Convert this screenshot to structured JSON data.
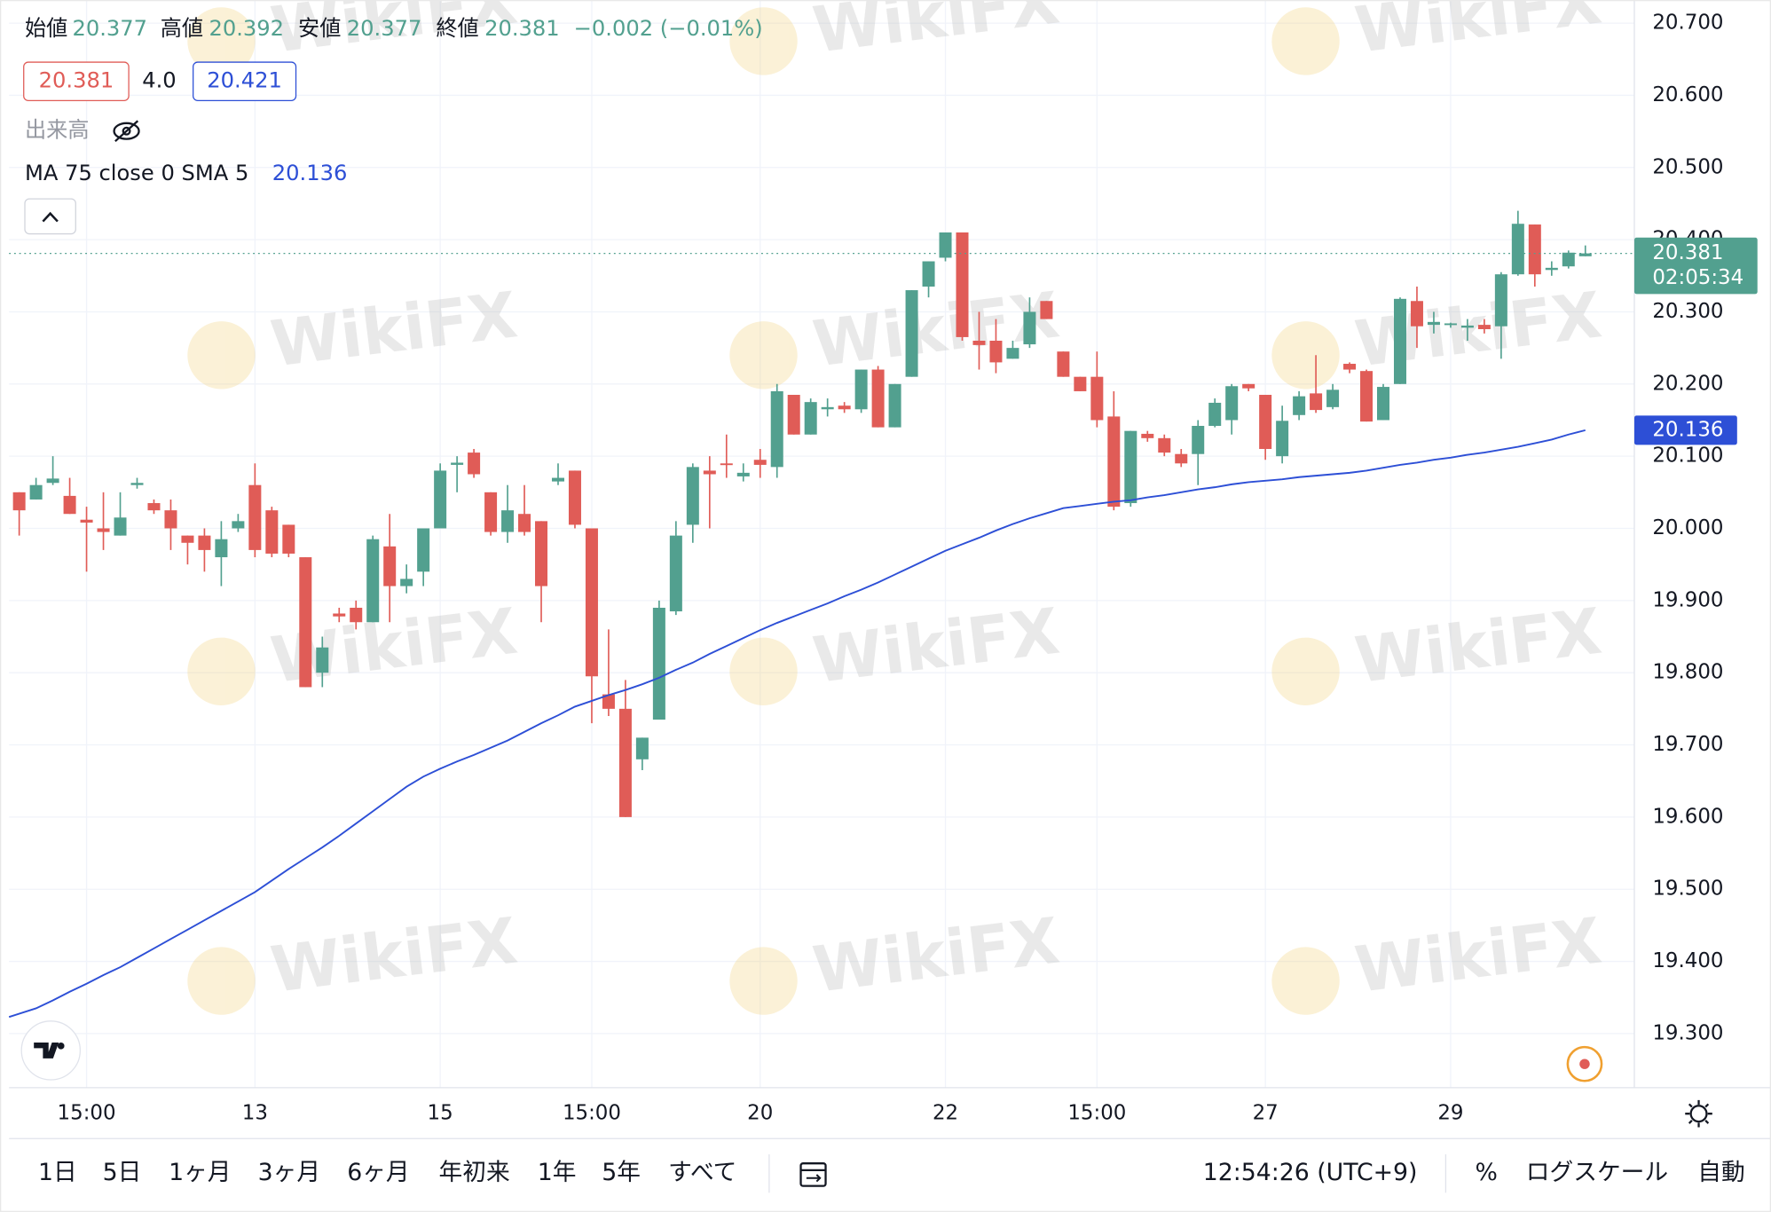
{
  "chart_data": {
    "type": "candlestick",
    "categories": [
      null,
      null,
      null,
      null,
      "15:00",
      null,
      null,
      null,
      null,
      null,
      null,
      null,
      null,
      null,
      "13",
      null,
      null,
      null,
      null,
      null,
      null,
      null,
      null,
      null,
      null,
      "15",
      null,
      null,
      null,
      null,
      null,
      null,
      null,
      null,
      "15:00",
      null,
      null,
      null,
      null,
      null,
      null,
      null,
      null,
      null,
      "20",
      null,
      null,
      null,
      null,
      null,
      null,
      null,
      null,
      null,
      null,
      "22",
      null,
      null,
      null,
      null,
      null,
      null,
      null,
      null,
      "15:00",
      null,
      null,
      null,
      null,
      null,
      null,
      null,
      null,
      null,
      "27",
      null,
      null,
      null,
      null,
      null,
      null,
      null,
      null,
      null,
      null,
      "29",
      null,
      null,
      null,
      null,
      null,
      null,
      null,
      null
    ],
    "open": [
      20.05,
      20.04,
      20.063,
      20.045,
      20.012,
      20.0,
      19.99,
      20.06,
      20.035,
      20.025,
      19.99,
      19.99,
      19.96,
      20.0,
      20.06,
      20.025,
      20.005,
      19.96,
      19.8,
      19.882,
      19.89,
      19.87,
      19.975,
      19.92,
      19.94,
      20.0,
      20.088,
      20.105,
      20.05,
      19.995,
      20.02,
      20.01,
      20.065,
      20.08,
      20.0,
      19.77,
      19.75,
      19.68,
      19.735,
      19.885,
      20.005,
      20.08,
      20.09,
      20.072,
      20.095,
      20.085,
      20.185,
      20.13,
      20.165,
      20.17,
      20.165,
      20.22,
      20.14,
      20.21,
      20.335,
      20.375,
      20.41,
      20.26,
      20.26,
      20.235,
      20.255,
      20.315,
      20.245,
      20.21,
      20.21,
      20.155,
      20.035,
      20.131,
      20.125,
      20.103,
      20.103,
      20.142,
      20.15,
      20.2,
      20.185,
      20.1,
      20.157,
      20.187,
      20.168,
      20.228,
      20.218,
      20.15,
      20.2,
      20.315,
      20.282,
      20.282,
      20.278,
      20.282,
      20.28,
      20.352,
      20.421,
      20.358,
      20.363,
      20.377
    ],
    "high": [
      20.05,
      20.07,
      20.1,
      20.07,
      20.03,
      20.05,
      20.05,
      20.07,
      20.04,
      20.04,
      19.99,
      20.0,
      20.01,
      20.02,
      20.09,
      20.03,
      20.005,
      19.96,
      19.85,
      19.89,
      19.9,
      19.99,
      20.02,
      19.95,
      20.0,
      20.09,
      20.1,
      20.11,
      20.05,
      20.06,
      20.06,
      20.01,
      20.09,
      20.08,
      20.0,
      19.86,
      19.79,
      19.71,
      19.9,
      20.01,
      20.09,
      20.1,
      20.13,
      20.09,
      20.11,
      20.2,
      20.185,
      20.18,
      20.18,
      20.175,
      20.22,
      20.225,
      20.2,
      20.33,
      20.37,
      20.41,
      20.41,
      20.3,
      20.29,
      20.26,
      20.32,
      20.315,
      20.245,
      20.21,
      20.245,
      20.19,
      20.135,
      20.135,
      20.13,
      20.11,
      20.15,
      20.18,
      20.2,
      20.2,
      20.185,
      20.17,
      20.19,
      20.24,
      20.2,
      20.23,
      20.22,
      20.2,
      20.32,
      20.335,
      20.3,
      20.285,
      20.29,
      20.29,
      20.355,
      20.44,
      20.421,
      20.37,
      20.385,
      20.392
    ],
    "low": [
      19.99,
      20.04,
      20.06,
      20.02,
      19.94,
      19.97,
      19.99,
      20.055,
      20.02,
      19.97,
      19.95,
      19.94,
      19.92,
      19.995,
      19.96,
      19.96,
      19.96,
      19.78,
      19.78,
      19.87,
      19.86,
      19.87,
      19.87,
      19.91,
      19.92,
      20.0,
      20.05,
      20.07,
      19.99,
      19.98,
      19.99,
      19.87,
      20.06,
      20.0,
      19.73,
      19.74,
      19.6,
      19.665,
      19.735,
      19.88,
      19.98,
      20.0,
      20.07,
      20.065,
      20.07,
      20.07,
      20.13,
      20.13,
      20.155,
      20.16,
      20.16,
      20.14,
      20.14,
      20.21,
      20.32,
      20.37,
      20.26,
      20.22,
      20.215,
      20.235,
      20.25,
      20.29,
      20.21,
      20.19,
      20.14,
      20.025,
      20.03,
      20.12,
      20.1,
      20.085,
      20.06,
      20.14,
      20.13,
      20.19,
      20.095,
      20.09,
      20.15,
      20.16,
      20.165,
      20.215,
      20.148,
      20.15,
      20.2,
      20.25,
      20.27,
      20.278,
      20.26,
      20.27,
      20.235,
      20.35,
      20.335,
      20.35,
      20.36,
      20.377
    ],
    "close": [
      20.025,
      20.06,
      20.069,
      20.02,
      20.008,
      19.995,
      20.015,
      20.063,
      20.025,
      20.0,
      19.98,
      19.97,
      19.985,
      20.01,
      19.97,
      19.965,
      19.965,
      19.78,
      19.835,
      19.878,
      19.87,
      19.985,
      19.92,
      19.93,
      20.0,
      20.08,
      20.091,
      20.075,
      19.995,
      20.025,
      19.995,
      19.92,
      20.07,
      20.005,
      19.795,
      19.75,
      19.6,
      19.71,
      19.89,
      19.99,
      20.085,
      20.075,
      20.088,
      20.077,
      20.088,
      20.19,
      20.13,
      20.175,
      20.168,
      20.165,
      20.22,
      20.14,
      20.2,
      20.33,
      20.37,
      20.41,
      20.265,
      20.254,
      20.23,
      20.25,
      20.3,
      20.29,
      20.21,
      20.19,
      20.15,
      20.03,
      20.135,
      20.125,
      20.105,
      20.09,
      20.142,
      20.174,
      20.197,
      20.194,
      20.11,
      20.149,
      20.183,
      20.164,
      20.192,
      20.22,
      20.148,
      20.196,
      20.318,
      20.28,
      20.286,
      20.284,
      20.281,
      20.276,
      20.352,
      20.422,
      20.352,
      20.361,
      20.382,
      20.381
    ],
    "up_color": "#52a08f",
    "down_color": "#e05c57",
    "ma": {
      "name": "MA 75 close 0 SMA 5",
      "color": "#2d4fd6",
      "values": [
        19.323,
        19.335,
        19.346,
        19.358,
        19.369,
        19.381,
        19.392,
        19.405,
        19.418,
        19.431,
        19.444,
        19.457,
        19.47,
        19.483,
        19.496,
        19.512,
        19.528,
        19.543,
        19.558,
        19.574,
        19.591,
        19.608,
        19.625,
        19.642,
        19.656,
        19.667,
        19.677,
        19.686,
        19.696,
        19.706,
        19.718,
        19.73,
        19.741,
        19.753,
        19.761,
        19.769,
        19.776,
        19.784,
        19.793,
        19.804,
        19.814,
        19.826,
        19.837,
        19.848,
        19.859,
        19.869,
        19.878,
        19.887,
        19.896,
        19.906,
        19.915,
        19.925,
        19.936,
        19.947,
        19.958,
        19.969,
        19.978,
        19.987,
        19.997,
        20.006,
        20.014,
        20.021,
        20.028,
        20.031,
        20.034,
        20.037,
        20.039,
        20.043,
        20.046,
        20.05,
        20.054,
        20.057,
        20.061,
        20.064,
        20.066,
        20.068,
        20.071,
        20.073,
        20.075,
        20.077,
        20.08,
        20.084,
        20.088,
        20.091,
        20.095,
        20.098,
        20.102,
        20.105,
        20.109,
        20.113,
        20.118,
        20.123,
        20.13,
        20.136
      ]
    },
    "ylim": [
      19.225,
      20.732
    ],
    "yticks": [
      {
        "value": 19.3,
        "label": "19.300"
      },
      {
        "value": 19.4,
        "label": "19.400"
      },
      {
        "value": 19.5,
        "label": "19.500"
      },
      {
        "value": 19.6,
        "label": "19.600"
      },
      {
        "value": 19.7,
        "label": "19.700"
      },
      {
        "value": 19.8,
        "label": "19.800"
      },
      {
        "value": 19.9,
        "label": "19.900"
      },
      {
        "value": 20.0,
        "label": "20.000"
      },
      {
        "value": 20.1,
        "label": "20.100"
      },
      {
        "value": 20.2,
        "label": "20.200"
      },
      {
        "value": 20.3,
        "label": "20.300"
      },
      {
        "value": 20.4,
        "label": "20.400"
      },
      {
        "value": 20.5,
        "label": "20.500"
      },
      {
        "value": 20.6,
        "label": "20.600"
      },
      {
        "value": 20.7,
        "label": "20.700"
      }
    ],
    "grid": true
  },
  "legend": {
    "open": "始値",
    "high": "高値",
    "low": "安値",
    "close": "終値",
    "change": "−0.002 (−0.01%)",
    "bid": "20.381",
    "spread": "4.0",
    "ask": "20.421",
    "volume": "出来高"
  },
  "countdown": "02:05:34",
  "watermark": "WikiFX",
  "toolbar": {
    "ranges": [
      "1日",
      "5日",
      "1ヶ月",
      "3ヶ月",
      "6ヶ月",
      "年初来",
      "1年",
      "5年",
      "すべて"
    ],
    "time": "12:54:26 (UTC+9)",
    "percent": "%",
    "log": "ログスケール",
    "auto": "自動"
  }
}
